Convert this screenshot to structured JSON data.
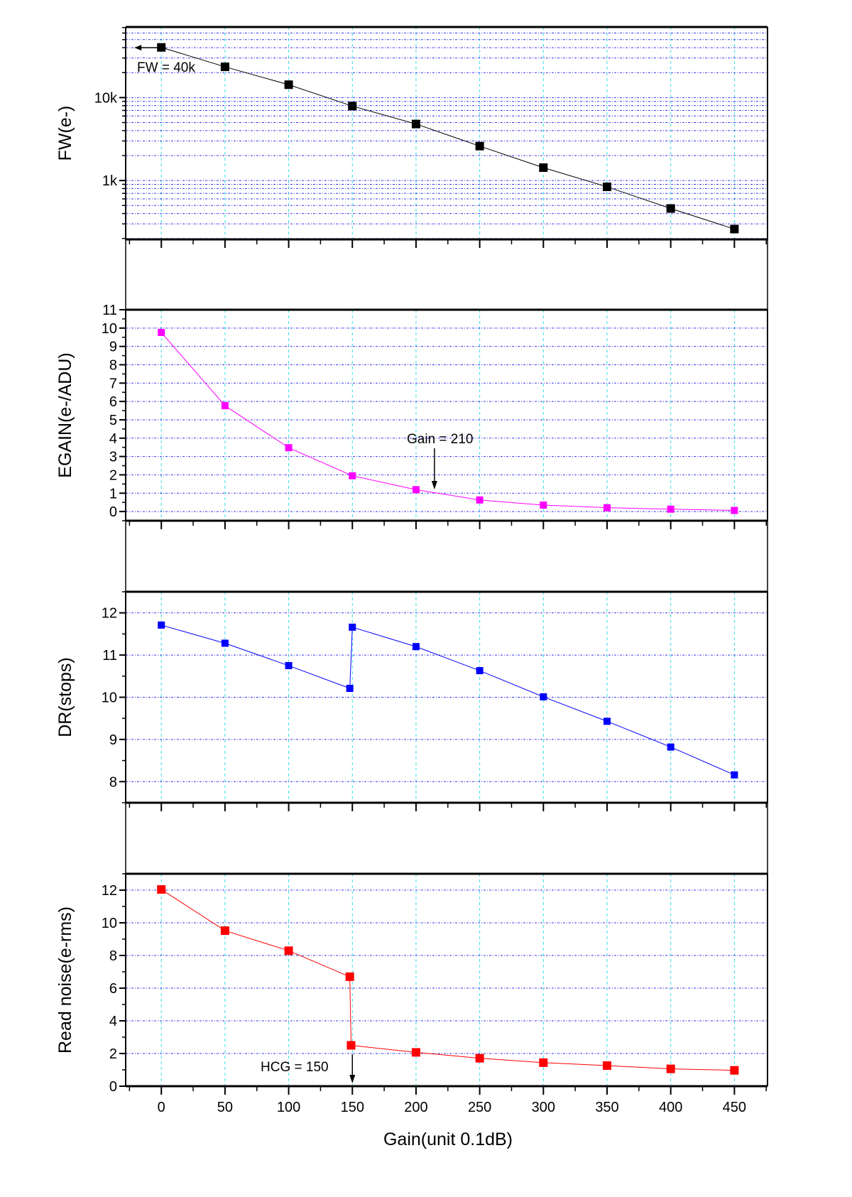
{
  "chart_data": {
    "type": "line",
    "x": [
      0,
      50,
      100,
      150,
      200,
      250,
      300,
      350,
      400,
      450
    ],
    "xlabel": "Gain(unit 0.1dB)",
    "xlim": [
      -28,
      476
    ],
    "xticks": [
      0,
      50,
      100,
      150,
      200,
      250,
      300,
      350,
      400,
      450
    ],
    "grid": true,
    "panels": [
      {
        "ylabel": "FW(e-)",
        "yscale": "log",
        "ylim": [
          195,
          71000
        ],
        "yticks": [
          1000,
          10000
        ],
        "ytick_labels": [
          "1k",
          "10k"
        ],
        "color": "#000000",
        "points": [
          [
            0,
            40300
          ],
          [
            50,
            23500
          ],
          [
            100,
            14300
          ],
          [
            150,
            7900
          ],
          [
            200,
            4800
          ],
          [
            250,
            2600
          ],
          [
            300,
            1430
          ],
          [
            350,
            840
          ],
          [
            400,
            460
          ],
          [
            450,
            260
          ]
        ],
        "annotation": {
          "text": "FW = 40k",
          "arrow_at": [
            0,
            40000
          ]
        }
      },
      {
        "ylabel": "EGAIN(e-/ADU)",
        "yscale": "linear",
        "ylim": [
          -0.5,
          11
        ],
        "yticks": [
          0,
          1,
          2,
          3,
          4,
          5,
          6,
          7,
          8,
          9,
          10,
          11
        ],
        "ytick_labels": [
          "0",
          "1",
          "2",
          "3",
          "4",
          "5",
          "6",
          "7",
          "8",
          "9",
          "10",
          "11"
        ],
        "color": "#ff00ff",
        "points": [
          [
            0,
            9.76
          ],
          [
            50,
            5.77
          ],
          [
            100,
            3.48
          ],
          [
            150,
            1.95
          ],
          [
            200,
            1.19
          ],
          [
            250,
            0.63
          ],
          [
            300,
            0.35
          ],
          [
            350,
            0.21
          ],
          [
            400,
            0.13
          ],
          [
            450,
            0.06
          ]
        ],
        "annotation": {
          "text": "Gain = 210",
          "arrow_at": [
            210,
            1.05
          ]
        }
      },
      {
        "ylabel": "DR(stops)",
        "yscale": "linear",
        "ylim": [
          7.5,
          12.5
        ],
        "yticks": [
          8,
          9,
          10,
          11,
          12
        ],
        "ytick_labels": [
          "8",
          "9",
          "10",
          "11",
          "12"
        ],
        "color": "#0000ff",
        "points": [
          [
            0,
            11.71
          ],
          [
            50,
            11.28
          ],
          [
            100,
            10.75
          ],
          [
            148,
            10.21
          ],
          [
            150,
            11.66
          ],
          [
            200,
            11.2
          ],
          [
            250,
            10.63
          ],
          [
            300,
            10.01
          ],
          [
            350,
            9.43
          ],
          [
            400,
            8.82
          ],
          [
            450,
            8.16
          ]
        ]
      },
      {
        "ylabel": "Read noise(e-rms)",
        "yscale": "linear",
        "ylim": [
          0,
          13
        ],
        "yticks": [
          0,
          2,
          4,
          6,
          8,
          10,
          12
        ],
        "ytick_labels": [
          "0",
          "2",
          "4",
          "6",
          "8",
          "10",
          "12"
        ],
        "color": "#ff0000",
        "points": [
          [
            0,
            12.04
          ],
          [
            50,
            9.52
          ],
          [
            100,
            8.29
          ],
          [
            148,
            6.7
          ],
          [
            149,
            2.5
          ],
          [
            200,
            2.07
          ],
          [
            250,
            1.71
          ],
          [
            300,
            1.44
          ],
          [
            350,
            1.26
          ],
          [
            400,
            1.06
          ],
          [
            450,
            0.97
          ]
        ],
        "annotation": {
          "text": "HCG = 150",
          "arrow_at": [
            150,
            0
          ]
        }
      }
    ]
  }
}
